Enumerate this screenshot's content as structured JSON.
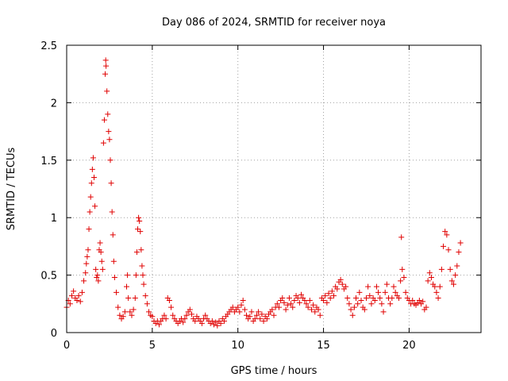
{
  "chart_data": {
    "type": "scatter",
    "title": "Day 086 of 2024, SRMTID for receiver noya",
    "xlabel": "GPS time / hours",
    "ylabel": "SRMTID / TECUs",
    "xlim": [
      0,
      24.2
    ],
    "ylim": [
      0,
      2.5
    ],
    "xticks": [
      0,
      5,
      10,
      15,
      20
    ],
    "xtick_labels": [
      "0",
      "5",
      "10",
      "15",
      "20"
    ],
    "yticks": [
      0,
      0.5,
      1,
      1.5,
      2,
      2.5
    ],
    "ytick_labels": [
      "0",
      "0.5",
      "1",
      "1.5",
      "2",
      "2.5"
    ],
    "grid": true,
    "marker": "+",
    "series": [
      {
        "name": "SRMTID",
        "color": "#e00000",
        "points": [
          [
            0.0,
            0.22
          ],
          [
            0.1,
            0.28
          ],
          [
            0.2,
            0.25
          ],
          [
            0.3,
            0.32
          ],
          [
            0.4,
            0.36
          ],
          [
            0.5,
            0.3
          ],
          [
            0.6,
            0.28
          ],
          [
            0.7,
            0.32
          ],
          [
            0.8,
            0.27
          ],
          [
            0.9,
            0.35
          ],
          [
            1.0,
            0.45
          ],
          [
            1.1,
            0.52
          ],
          [
            1.15,
            0.6
          ],
          [
            1.2,
            0.66
          ],
          [
            1.25,
            0.72
          ],
          [
            1.3,
            0.9
          ],
          [
            1.35,
            1.05
          ],
          [
            1.4,
            1.18
          ],
          [
            1.45,
            1.3
          ],
          [
            1.5,
            1.42
          ],
          [
            1.55,
            1.52
          ],
          [
            1.6,
            1.35
          ],
          [
            1.65,
            1.1
          ],
          [
            1.7,
            0.55
          ],
          [
            1.75,
            0.48
          ],
          [
            1.8,
            0.5
          ],
          [
            1.85,
            0.45
          ],
          [
            1.9,
            0.72
          ],
          [
            1.95,
            0.78
          ],
          [
            2.0,
            0.7
          ],
          [
            2.05,
            0.62
          ],
          [
            2.1,
            0.55
          ],
          [
            2.15,
            1.65
          ],
          [
            2.2,
            1.85
          ],
          [
            2.25,
            2.25
          ],
          [
            2.28,
            2.37
          ],
          [
            2.3,
            2.32
          ],
          [
            2.35,
            2.1
          ],
          [
            2.4,
            1.9
          ],
          [
            2.45,
            1.75
          ],
          [
            2.5,
            1.68
          ],
          [
            2.55,
            1.5
          ],
          [
            2.6,
            1.3
          ],
          [
            2.65,
            1.05
          ],
          [
            2.7,
            0.85
          ],
          [
            2.75,
            0.62
          ],
          [
            2.8,
            0.48
          ],
          [
            2.9,
            0.35
          ],
          [
            3.0,
            0.22
          ],
          [
            3.1,
            0.15
          ],
          [
            3.2,
            0.12
          ],
          [
            3.3,
            0.14
          ],
          [
            3.4,
            0.18
          ],
          [
            3.5,
            0.4
          ],
          [
            3.55,
            0.5
          ],
          [
            3.6,
            0.3
          ],
          [
            3.7,
            0.18
          ],
          [
            3.8,
            0.15
          ],
          [
            3.9,
            0.2
          ],
          [
            4.0,
            0.3
          ],
          [
            4.05,
            0.5
          ],
          [
            4.1,
            0.7
          ],
          [
            4.15,
            0.9
          ],
          [
            4.2,
            1.0
          ],
          [
            4.25,
            0.97
          ],
          [
            4.3,
            0.88
          ],
          [
            4.35,
            0.72
          ],
          [
            4.4,
            0.58
          ],
          [
            4.45,
            0.5
          ],
          [
            4.5,
            0.42
          ],
          [
            4.6,
            0.32
          ],
          [
            4.7,
            0.25
          ],
          [
            4.8,
            0.18
          ],
          [
            4.9,
            0.15
          ],
          [
            5.0,
            0.14
          ],
          [
            5.1,
            0.1
          ],
          [
            5.2,
            0.08
          ],
          [
            5.3,
            0.1
          ],
          [
            5.4,
            0.07
          ],
          [
            5.5,
            0.1
          ],
          [
            5.6,
            0.12
          ],
          [
            5.7,
            0.15
          ],
          [
            5.8,
            0.12
          ],
          [
            5.9,
            0.3
          ],
          [
            6.0,
            0.28
          ],
          [
            6.1,
            0.22
          ],
          [
            6.2,
            0.15
          ],
          [
            6.3,
            0.12
          ],
          [
            6.4,
            0.1
          ],
          [
            6.5,
            0.08
          ],
          [
            6.6,
            0.1
          ],
          [
            6.7,
            0.12
          ],
          [
            6.8,
            0.09
          ],
          [
            6.9,
            0.12
          ],
          [
            7.0,
            0.15
          ],
          [
            7.1,
            0.18
          ],
          [
            7.2,
            0.2
          ],
          [
            7.3,
            0.16
          ],
          [
            7.4,
            0.12
          ],
          [
            7.5,
            0.1
          ],
          [
            7.6,
            0.14
          ],
          [
            7.7,
            0.12
          ],
          [
            7.8,
            0.1
          ],
          [
            7.9,
            0.08
          ],
          [
            8.0,
            0.12
          ],
          [
            8.1,
            0.15
          ],
          [
            8.2,
            0.12
          ],
          [
            8.3,
            0.1
          ],
          [
            8.4,
            0.08
          ],
          [
            8.5,
            0.1
          ],
          [
            8.6,
            0.07
          ],
          [
            8.7,
            0.09
          ],
          [
            8.8,
            0.06
          ],
          [
            8.9,
            0.1
          ],
          [
            9.0,
            0.08
          ],
          [
            9.1,
            0.12
          ],
          [
            9.2,
            0.1
          ],
          [
            9.3,
            0.14
          ],
          [
            9.4,
            0.16
          ],
          [
            9.5,
            0.18
          ],
          [
            9.6,
            0.2
          ],
          [
            9.7,
            0.22
          ],
          [
            9.8,
            0.18
          ],
          [
            9.9,
            0.2
          ],
          [
            10.0,
            0.22
          ],
          [
            10.1,
            0.18
          ],
          [
            10.2,
            0.24
          ],
          [
            10.3,
            0.28
          ],
          [
            10.4,
            0.2
          ],
          [
            10.5,
            0.15
          ],
          [
            10.6,
            0.12
          ],
          [
            10.7,
            0.14
          ],
          [
            10.8,
            0.18
          ],
          [
            10.9,
            0.1
          ],
          [
            11.0,
            0.12
          ],
          [
            11.1,
            0.15
          ],
          [
            11.2,
            0.18
          ],
          [
            11.3,
            0.12
          ],
          [
            11.4,
            0.16
          ],
          [
            11.5,
            0.1
          ],
          [
            11.6,
            0.14
          ],
          [
            11.7,
            0.12
          ],
          [
            11.8,
            0.16
          ],
          [
            11.9,
            0.18
          ],
          [
            12.0,
            0.2
          ],
          [
            12.1,
            0.15
          ],
          [
            12.2,
            0.22
          ],
          [
            12.3,
            0.25
          ],
          [
            12.4,
            0.22
          ],
          [
            12.5,
            0.28
          ],
          [
            12.6,
            0.3
          ],
          [
            12.7,
            0.26
          ],
          [
            12.8,
            0.2
          ],
          [
            12.9,
            0.24
          ],
          [
            13.0,
            0.3
          ],
          [
            13.1,
            0.25
          ],
          [
            13.2,
            0.22
          ],
          [
            13.3,
            0.28
          ],
          [
            13.4,
            0.32
          ],
          [
            13.5,
            0.3
          ],
          [
            13.6,
            0.26
          ],
          [
            13.7,
            0.33
          ],
          [
            13.8,
            0.3
          ],
          [
            13.9,
            0.28
          ],
          [
            14.0,
            0.25
          ],
          [
            14.1,
            0.22
          ],
          [
            14.2,
            0.28
          ],
          [
            14.3,
            0.2
          ],
          [
            14.4,
            0.24
          ],
          [
            14.5,
            0.18
          ],
          [
            14.6,
            0.22
          ],
          [
            14.7,
            0.2
          ],
          [
            14.8,
            0.15
          ],
          [
            14.9,
            0.3
          ],
          [
            15.0,
            0.28
          ],
          [
            15.1,
            0.32
          ],
          [
            15.2,
            0.26
          ],
          [
            15.3,
            0.34
          ],
          [
            15.4,
            0.3
          ],
          [
            15.5,
            0.36
          ],
          [
            15.6,
            0.32
          ],
          [
            15.7,
            0.4
          ],
          [
            15.8,
            0.38
          ],
          [
            15.9,
            0.44
          ],
          [
            16.0,
            0.46
          ],
          [
            16.1,
            0.42
          ],
          [
            16.2,
            0.38
          ],
          [
            16.3,
            0.4
          ],
          [
            16.4,
            0.3
          ],
          [
            16.5,
            0.25
          ],
          [
            16.6,
            0.2
          ],
          [
            16.7,
            0.15
          ],
          [
            16.8,
            0.22
          ],
          [
            16.9,
            0.3
          ],
          [
            17.0,
            0.25
          ],
          [
            17.1,
            0.35
          ],
          [
            17.2,
            0.28
          ],
          [
            17.3,
            0.22
          ],
          [
            17.4,
            0.2
          ],
          [
            17.5,
            0.3
          ],
          [
            17.6,
            0.4
          ],
          [
            17.7,
            0.32
          ],
          [
            17.8,
            0.25
          ],
          [
            17.9,
            0.3
          ],
          [
            18.0,
            0.28
          ],
          [
            18.1,
            0.4
          ],
          [
            18.2,
            0.35
          ],
          [
            18.3,
            0.3
          ],
          [
            18.4,
            0.25
          ],
          [
            18.5,
            0.18
          ],
          [
            18.6,
            0.35
          ],
          [
            18.7,
            0.42
          ],
          [
            18.8,
            0.3
          ],
          [
            18.9,
            0.25
          ],
          [
            19.0,
            0.3
          ],
          [
            19.1,
            0.4
          ],
          [
            19.2,
            0.35
          ],
          [
            19.3,
            0.32
          ],
          [
            19.4,
            0.3
          ],
          [
            19.5,
            0.45
          ],
          [
            19.55,
            0.83
          ],
          [
            19.6,
            0.55
          ],
          [
            19.7,
            0.48
          ],
          [
            19.8,
            0.35
          ],
          [
            19.9,
            0.3
          ],
          [
            20.0,
            0.28
          ],
          [
            20.1,
            0.25
          ],
          [
            20.2,
            0.28
          ],
          [
            20.3,
            0.25
          ],
          [
            20.4,
            0.24
          ],
          [
            20.5,
            0.26
          ],
          [
            20.6,
            0.28
          ],
          [
            20.7,
            0.25
          ],
          [
            20.8,
            0.27
          ],
          [
            20.9,
            0.2
          ],
          [
            21.0,
            0.22
          ],
          [
            21.1,
            0.45
          ],
          [
            21.2,
            0.52
          ],
          [
            21.3,
            0.48
          ],
          [
            21.4,
            0.42
          ],
          [
            21.5,
            0.4
          ],
          [
            21.6,
            0.35
          ],
          [
            21.7,
            0.3
          ],
          [
            21.8,
            0.4
          ],
          [
            21.9,
            0.55
          ],
          [
            22.0,
            0.75
          ],
          [
            22.1,
            0.88
          ],
          [
            22.2,
            0.85
          ],
          [
            22.3,
            0.72
          ],
          [
            22.4,
            0.55
          ],
          [
            22.5,
            0.45
          ],
          [
            22.6,
            0.42
          ],
          [
            22.7,
            0.5
          ],
          [
            22.8,
            0.58
          ],
          [
            22.9,
            0.7
          ],
          [
            23.0,
            0.78
          ]
        ]
      }
    ]
  }
}
